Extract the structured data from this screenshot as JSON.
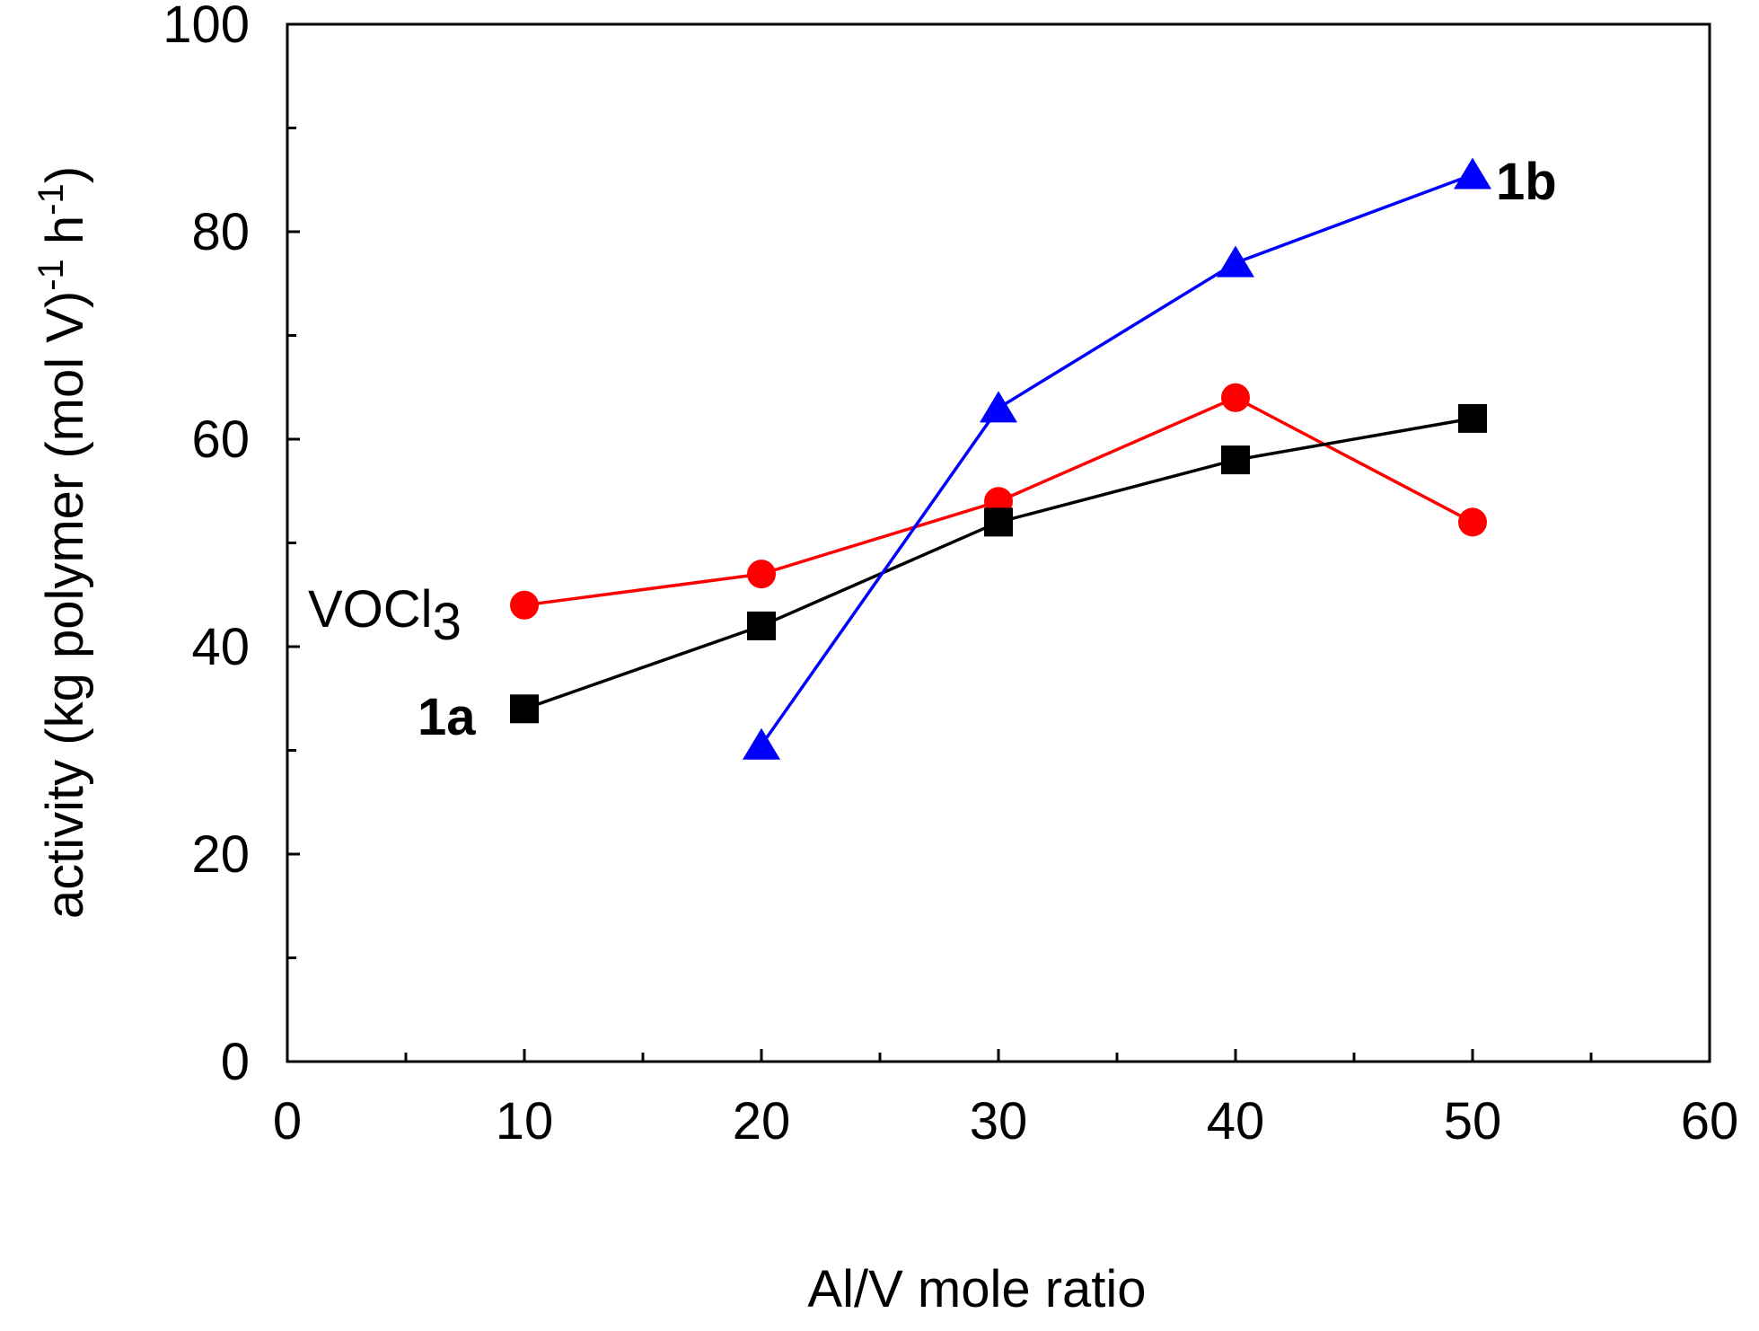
{
  "chart_data": {
    "type": "line",
    "title": "",
    "xlabel": "Al/V mole ratio",
    "ylabel": "activity (kg polymer (mol V)",
    "ylabel_sup1": "-1",
    "ylabel_mid": " h",
    "ylabel_sup2": "-1",
    "ylabel_end": ")",
    "xlim": [
      0,
      60
    ],
    "ylim": [
      0,
      100
    ],
    "xticks": [
      0,
      10,
      20,
      30,
      40,
      50,
      60
    ],
    "yticks": [
      0,
      20,
      40,
      60,
      80,
      100
    ],
    "grid": false,
    "series": [
      {
        "name": "VOCl3",
        "label_main": "VOCl",
        "label_sub": "3",
        "color": "#ff0000",
        "marker": "circle",
        "x": [
          10,
          20,
          30,
          40,
          50
        ],
        "y": [
          44,
          47,
          54,
          64,
          52
        ]
      },
      {
        "name": "1a",
        "label_main": "1a",
        "color": "#000000",
        "marker": "square",
        "x": [
          10,
          20,
          30,
          40,
          50
        ],
        "y": [
          34,
          42,
          52,
          58,
          62
        ]
      },
      {
        "name": "1b",
        "label_main": "1b",
        "color": "#0000ff",
        "marker": "triangle",
        "x": [
          20,
          30,
          40,
          50
        ],
        "y": [
          30.5,
          63,
          77,
          85.5
        ]
      }
    ]
  }
}
